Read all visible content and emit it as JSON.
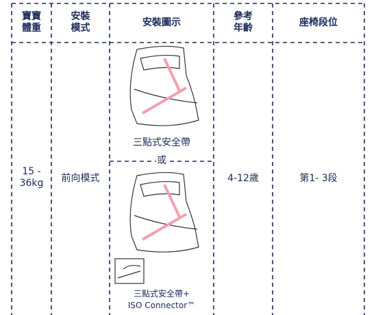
{
  "table": {
    "header": [
      "寶寶\n體重",
      "安裝\n模式",
      "安裝圖示",
      "參考\n年齡",
      "座椅段位"
    ],
    "rows": [
      {
        "weight": "15 -\n36kg",
        "mode": "前向模式",
        "captions": [
          "三點式安全帶",
          "或",
          "三點式安全帶+\nISO Connector™"
        ],
        "age": "4-12歲",
        "position": "第1- 3段"
      }
    ]
  }
}
